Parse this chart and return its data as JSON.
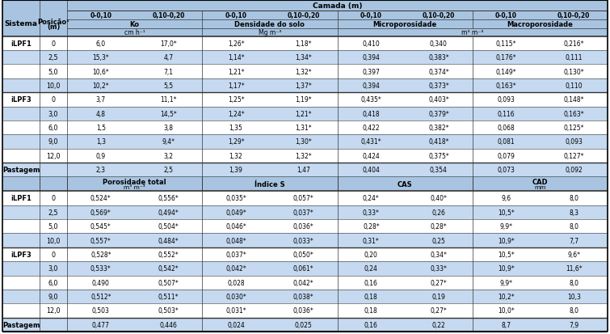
{
  "header_bg": "#A8C4E0",
  "row_bg_light": "#C5D9F0",
  "row_bg_white": "#FFFFFF",
  "top_header_cols": [
    "0-0,10",
    "0,10-0,20",
    "0-0,10",
    "0,10-0,20",
    "0-0,10",
    "0,10-0,20",
    "0-0,10",
    "0,10-0,20"
  ],
  "section1_rows": [
    [
      "iLPF1",
      "0",
      "6,0",
      "17,0*",
      "1,26*",
      "1,18*",
      "0,410",
      "0,340",
      "0,115*",
      "0,216*"
    ],
    [
      "",
      "2,5",
      "15,3*",
      "4,7",
      "1,14*",
      "1,34*",
      "0,394",
      "0,383*",
      "0,176*",
      "0,111"
    ],
    [
      "",
      "5,0",
      "10,6*",
      "7,1",
      "1,21*",
      "1,32*",
      "0,397",
      "0,374*",
      "0,149*",
      "0,130*"
    ],
    [
      "",
      "10,0",
      "10,2*",
      "5,5",
      "1,17*",
      "1,37*",
      "0,394",
      "0,373*",
      "0,163*",
      "0,110"
    ],
    [
      "iLPF3",
      "0",
      "3,7",
      "11,1*",
      "1,25*",
      "1,19*",
      "0,435*",
      "0,403*",
      "0,093",
      "0,148*"
    ],
    [
      "",
      "3,0",
      "4,8",
      "14,5*",
      "1,24*",
      "1,21*",
      "0,418",
      "0,379*",
      "0,116",
      "0,163*"
    ],
    [
      "",
      "6,0",
      "1,5",
      "3,8",
      "1,35",
      "1,31*",
      "0,422",
      "0,382*",
      "0,068",
      "0,125*"
    ],
    [
      "",
      "9,0",
      "1,3",
      "9,4*",
      "1,29*",
      "1,30*",
      "0,431*",
      "0,418*",
      "0,081",
      "0,093"
    ],
    [
      "",
      "12,0",
      "0,9",
      "3,2",
      "1,32",
      "1,32*",
      "0,424",
      "0,375*",
      "0,079",
      "0,127*"
    ],
    [
      "Pastagem",
      "",
      "2,3",
      "2,5",
      "1,39",
      "1,47",
      "0,404",
      "0,354",
      "0,073",
      "0,092"
    ]
  ],
  "section2_rows": [
    [
      "iLPF1",
      "0",
      "0,524*",
      "0,556*",
      "0,035*",
      "0,057*",
      "0,24*",
      "0,40*",
      "9,6",
      "8,0"
    ],
    [
      "",
      "2,5",
      "0,569*",
      "0,494*",
      "0,049*",
      "0,037*",
      "0,33*",
      "0,26",
      "10,5*",
      "8,3"
    ],
    [
      "",
      "5,0",
      "0,545*",
      "0,504*",
      "0,046*",
      "0,036*",
      "0,28*",
      "0,28*",
      "9,9*",
      "8,0"
    ],
    [
      "",
      "10,0",
      "0,557*",
      "0,484*",
      "0,048*",
      "0,033*",
      "0,31*",
      "0,25",
      "10,9*",
      "7,7"
    ],
    [
      "iLPF3",
      "0",
      "0,528*",
      "0,552*",
      "0,037*",
      "0,050*",
      "0,20",
      "0,34*",
      "10,5*",
      "9,6*"
    ],
    [
      "",
      "3,0",
      "0,533*",
      "0,542*",
      "0,042*",
      "0,061*",
      "0,24",
      "0,33*",
      "10,9*",
      "11,6*"
    ],
    [
      "",
      "6,0",
      "0,490",
      "0,507*",
      "0,028",
      "0,042*",
      "0,16",
      "0,27*",
      "9,9*",
      "8,0"
    ],
    [
      "",
      "9,0",
      "0,512*",
      "0,511*",
      "0,030*",
      "0,038*",
      "0,18",
      "0,19",
      "10,2*",
      "10,3"
    ],
    [
      "",
      "12,0",
      "0,503",
      "0,503*",
      "0,031*",
      "0,036*",
      "0,18",
      "0,27*",
      "10,0*",
      "8,0"
    ],
    [
      "Pastagem",
      "",
      "0,477",
      "0,446",
      "0,024",
      "0,025",
      "0,16",
      "0,22",
      "8,7",
      "7,9"
    ]
  ]
}
